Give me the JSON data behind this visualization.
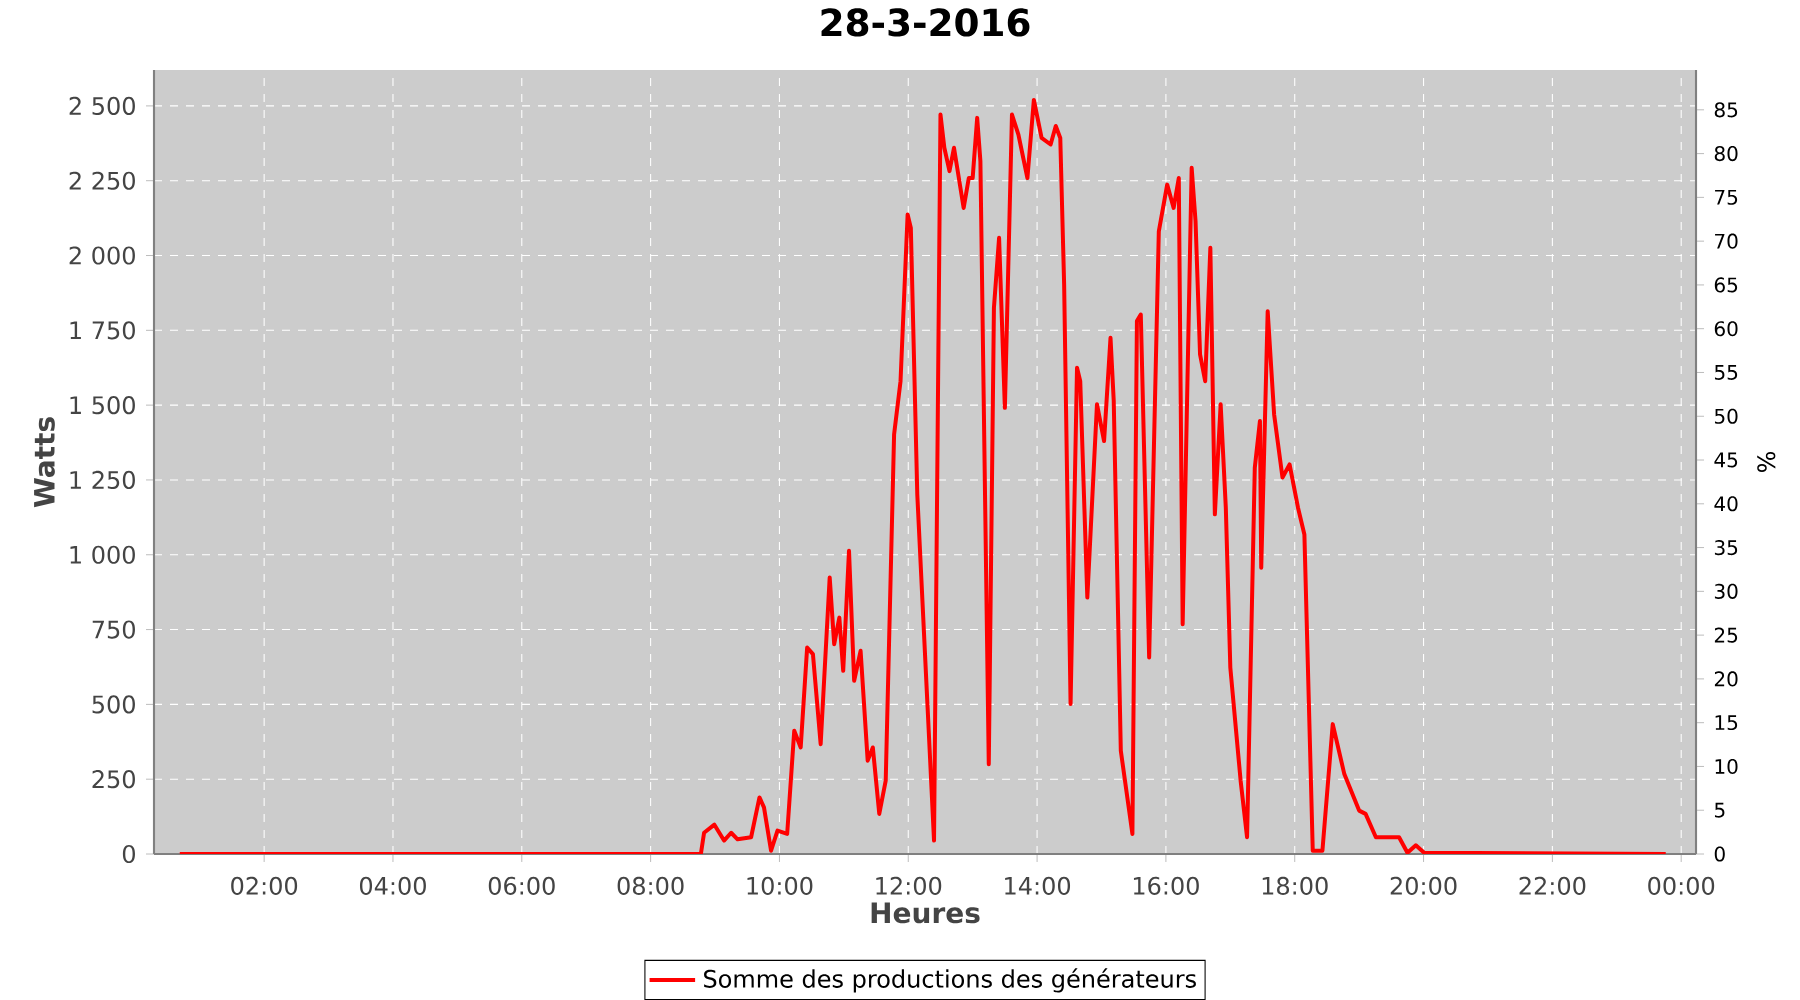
{
  "chart_data": {
    "type": "line",
    "title": "28-3-2016",
    "xlabel": "Heures",
    "ylabel": "Watts",
    "y2label": "%",
    "x": [
      0.69,
      4.0,
      8.0,
      8.78,
      8.83,
      8.99,
      9.14,
      9.25,
      9.35,
      9.56,
      9.69,
      9.76,
      9.87,
      9.97,
      10.12,
      10.23,
      10.33,
      10.43,
      10.52,
      10.64,
      10.78,
      10.85,
      10.93,
      10.99,
      11.08,
      11.16,
      11.26,
      11.37,
      11.45,
      11.55,
      11.65,
      11.78,
      11.88,
      11.99,
      12.04,
      12.14,
      12.3,
      12.4,
      12.5,
      12.56,
      12.64,
      12.71,
      12.86,
      12.94,
      13.0,
      13.07,
      13.12,
      13.25,
      13.33,
      13.41,
      13.5,
      13.61,
      13.71,
      13.85,
      13.95,
      14.07,
      14.21,
      14.29,
      14.36,
      14.42,
      14.52,
      14.62,
      14.67,
      14.78,
      14.93,
      15.04,
      15.14,
      15.19,
      15.3,
      15.48,
      15.55,
      15.61,
      15.74,
      15.89,
      16.02,
      16.12,
      16.2,
      16.26,
      16.4,
      16.46,
      16.53,
      16.61,
      16.69,
      16.76,
      16.85,
      16.93,
      17.0,
      17.16,
      17.26,
      17.38,
      17.46,
      17.48,
      17.58,
      17.68,
      17.81,
      17.92,
      18.05,
      18.15,
      18.28,
      18.43,
      18.59,
      18.77,
      19.0,
      19.1,
      19.26,
      19.62,
      19.75,
      19.88,
      20.01,
      23.76
    ],
    "series": [
      {
        "name": "Somme des productions des  générateurs",
        "color": "#ff0000",
        "values": [
          0,
          0,
          0,
          0,
          71,
          98,
          45,
          71,
          49,
          56,
          189,
          156,
          11,
          78,
          67,
          412,
          356,
          690,
          668,
          367,
          924,
          701,
          790,
          612,
          1013,
          579,
          679,
          312,
          356,
          134,
          245,
          1402,
          1580,
          2137,
          2092,
          1202,
          490,
          45,
          2471,
          2360,
          2282,
          2360,
          2159,
          2259,
          2259,
          2460,
          2315,
          300,
          1825,
          2059,
          1491,
          2471,
          2404,
          2259,
          2520,
          2393,
          2371,
          2433,
          2393,
          1903,
          501,
          1625,
          1580,
          857,
          1503,
          1380,
          1725,
          1514,
          345,
          67,
          1781,
          1803,
          657,
          2081,
          2237,
          2159,
          2259,
          768,
          2293,
          2115,
          1670,
          1580,
          2026,
          1135,
          1503,
          1158,
          623,
          245,
          56,
          1291,
          1447,
          957,
          1814,
          1469,
          1258,
          1302,
          1158,
          1068,
          11,
          11,
          434,
          267,
          145,
          134,
          56,
          56,
          4,
          29,
          4,
          0
        ]
      }
    ],
    "xlim": [
      0.29,
      24.23
    ],
    "ylim": [
      0,
      2620
    ],
    "y2lim": [
      0,
      89.55
    ],
    "xticks": [
      {
        "value": 2,
        "label": "02:00"
      },
      {
        "value": 4,
        "label": "04:00"
      },
      {
        "value": 6,
        "label": "06:00"
      },
      {
        "value": 8,
        "label": "08:00"
      },
      {
        "value": 10,
        "label": "10:00"
      },
      {
        "value": 12,
        "label": "12:00"
      },
      {
        "value": 14,
        "label": "14:00"
      },
      {
        "value": 16,
        "label": "16:00"
      },
      {
        "value": 18,
        "label": "18:00"
      },
      {
        "value": 20,
        "label": "20:00"
      },
      {
        "value": 22,
        "label": "22:00"
      },
      {
        "value": 24,
        "label": "00:00"
      }
    ],
    "yticks": [
      0,
      250,
      500,
      750,
      {
        "value": 1000,
        "label": "1 000"
      },
      {
        "value": 1250,
        "label": "1 250"
      },
      {
        "value": 1500,
        "label": "1 500"
      },
      {
        "value": 1750,
        "label": "1 750"
      },
      {
        "value": 2000,
        "label": "2 000"
      },
      {
        "value": 2250,
        "label": "2 250"
      },
      {
        "value": 2500,
        "label": "2 500"
      }
    ],
    "y2ticks": [
      0,
      5,
      10,
      15,
      20,
      25,
      30,
      35,
      40,
      45,
      50,
      55,
      60,
      65,
      70,
      75,
      80,
      85
    ],
    "grid": true,
    "legend": "bottom",
    "marker": "none",
    "line_style": "solid"
  }
}
